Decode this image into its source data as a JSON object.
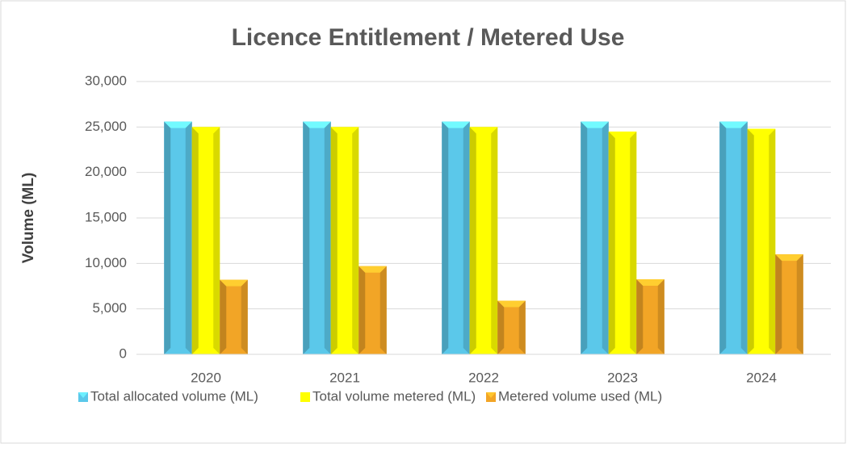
{
  "chart_data": {
    "type": "bar",
    "title": "Licence Entitlement / Metered Use",
    "y_label": "Volume (ML)",
    "categories": [
      "2020",
      "2021",
      "2022",
      "2023",
      "2024"
    ],
    "series": [
      {
        "name": "Total allocated volume (ML)",
        "color": "#5bc8ea",
        "values": [
          25600,
          25600,
          25600,
          25600,
          25600
        ]
      },
      {
        "name": "Total volume metered (ML)",
        "color": "#ffff00",
        "values": [
          25000,
          25000,
          25000,
          24500,
          24800
        ]
      },
      {
        "name": "Metered volume used (ML)",
        "color": "#f2a526",
        "values": [
          8200,
          9700,
          5900,
          8250,
          11000
        ]
      }
    ],
    "ylim": [
      0,
      30000
    ],
    "yticks": [
      {
        "value": 0,
        "label": "0"
      },
      {
        "value": 5000,
        "label": "5,000"
      },
      {
        "value": 10000,
        "label": "10,000"
      },
      {
        "value": 15000,
        "label": "15,000"
      },
      {
        "value": 20000,
        "label": "20,000"
      },
      {
        "value": 25000,
        "label": "25,000"
      },
      {
        "value": 30000,
        "label": "30,000"
      }
    ],
    "grid": true,
    "legend": "bottom"
  }
}
